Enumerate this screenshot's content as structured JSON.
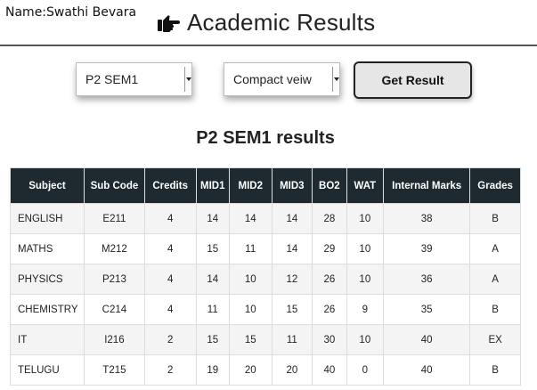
{
  "student": {
    "name": "Name:Swathi Bevara"
  },
  "header": {
    "title": "Academic Results",
    "icon": "pointing-hand-icon"
  },
  "controls": {
    "semester_select": {
      "value": "P2 SEM1"
    },
    "view_select": {
      "value": "Compact veiw"
    },
    "get_result_label": "Get Result"
  },
  "results": {
    "heading": "P2 SEM1 results",
    "columns": [
      "Subject",
      "Sub Code",
      "Credits",
      "MID1",
      "MID2",
      "MID3",
      "BO2",
      "WAT",
      "Internal Marks",
      "Grades"
    ],
    "rows": [
      [
        "ENGLISH",
        "E211",
        "4",
        "14",
        "14",
        "14",
        "28",
        "10",
        "38",
        "B"
      ],
      [
        "MATHS",
        "M212",
        "4",
        "15",
        "11",
        "14",
        "29",
        "10",
        "39",
        "A"
      ],
      [
        "PHYSICS",
        "P213",
        "4",
        "14",
        "10",
        "12",
        "26",
        "10",
        "36",
        "A"
      ],
      [
        "CHEMISTRY",
        "C214",
        "4",
        "11",
        "10",
        "15",
        "26",
        "9",
        "35",
        "B"
      ],
      [
        "IT",
        "I216",
        "2",
        "15",
        "15",
        "11",
        "30",
        "10",
        "40",
        "EX"
      ],
      [
        "TELUGU",
        "T215",
        "2",
        "19",
        "20",
        "20",
        "40",
        "0",
        "40",
        "B"
      ]
    ]
  },
  "colors": {
    "table_header_bg": "#1e2a30",
    "row_stripe": "#f4f4f4",
    "button_bg": "#e6e6e6"
  }
}
